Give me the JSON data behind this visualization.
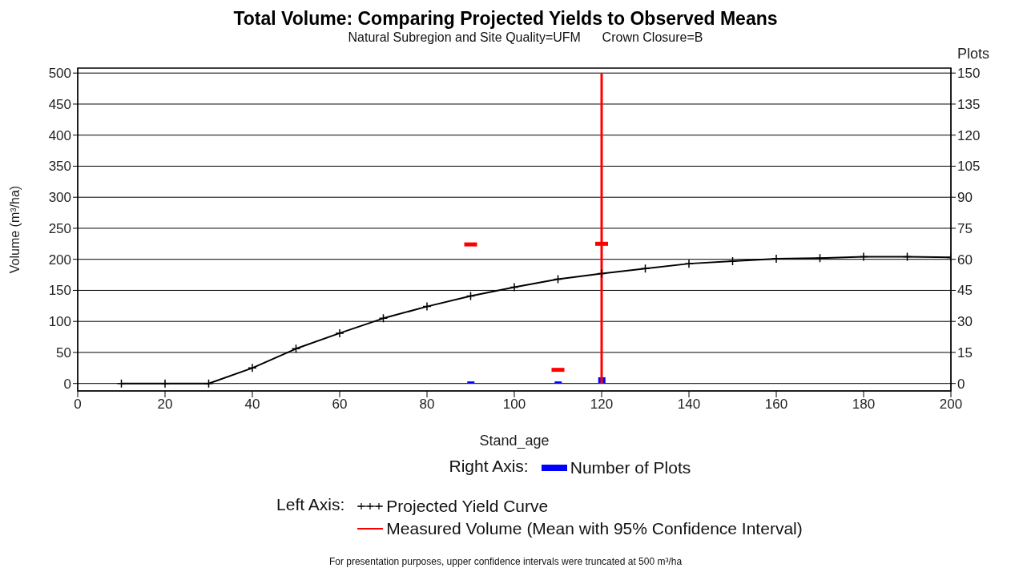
{
  "chart_data": {
    "type": "line",
    "title": "Total Volume: Comparing Projected Yields to Observed Means",
    "subtitle": "Natural Subregion and Site Quality=UFM      Crown Closure=B",
    "xlabel": "Stand_age",
    "ylabel": "Volume (m³/ha)",
    "y2label": "Plots",
    "x": [
      10,
      20,
      30,
      40,
      50,
      60,
      70,
      80,
      90,
      100,
      110,
      120,
      130,
      140,
      150,
      160,
      170,
      180,
      190,
      200
    ],
    "series": [
      {
        "name": "Number of Plots",
        "type": "bar",
        "axis": "y2",
        "color": "#0000ff",
        "x": [
          90,
          110,
          120
        ],
        "values": [
          1,
          1,
          3
        ]
      },
      {
        "name": "Projected Yield Curve",
        "color": "#000000",
        "marker": "cross",
        "values": [
          0,
          0,
          0,
          25,
          56,
          81,
          105,
          124,
          141,
          155,
          168,
          177,
          185,
          193,
          197,
          201,
          202,
          204,
          204,
          203
        ]
      },
      {
        "name": "Measured Volume (Mean with 95% Confidence Interval)",
        "type": "scatter",
        "color": "#ff0000",
        "x": [
          90,
          110,
          120
        ],
        "values": [
          224,
          22,
          225
        ],
        "errors": [
          null,
          null,
          [
            0,
            500
          ]
        ]
      }
    ],
    "xlim": [
      0,
      200
    ],
    "xticks": [
      0,
      20,
      40,
      60,
      80,
      100,
      120,
      140,
      160,
      180,
      200
    ],
    "ylim": [
      -12,
      508
    ],
    "yticks": [
      0,
      50,
      100,
      150,
      200,
      250,
      300,
      350,
      400,
      450,
      500
    ],
    "y2lim": [
      -3.6,
      152.4
    ],
    "y2ticks": [
      0,
      15,
      30,
      45,
      60,
      75,
      90,
      105,
      120,
      135,
      150
    ],
    "grid": "y",
    "legend": "bottom",
    "annotations": [
      "Right Axis:",
      "Left Axis:",
      "For presentation purposes, upper confidence intervals were truncated at 500 m³/ha"
    ]
  }
}
